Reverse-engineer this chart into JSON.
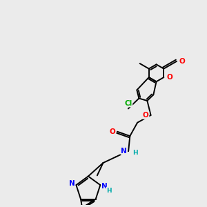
{
  "background_color": "#ebebeb",
  "bond_color": "#000000",
  "atom_colors": {
    "O": "#ff0000",
    "N": "#0000ff",
    "Cl": "#00aa00",
    "C": "#000000",
    "H": "#00aaaa"
  },
  "figsize": [
    3.0,
    3.0
  ],
  "dpi": 100
}
